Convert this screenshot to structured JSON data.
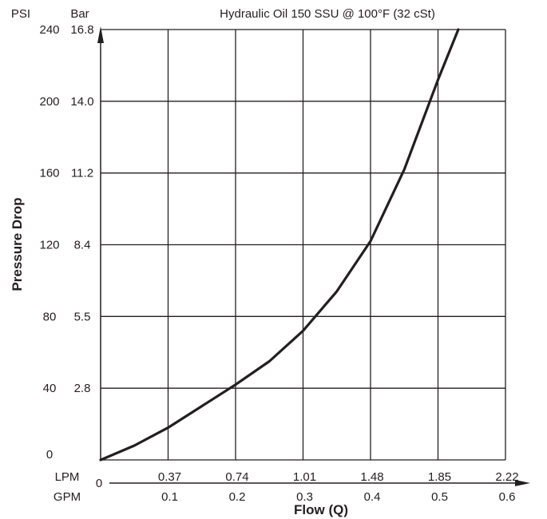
{
  "chart_data": {
    "type": "line",
    "title": "Hydraulic Oil 150 SSU @ 100°F (32 cSt)",
    "xlabel": "Flow (Q)",
    "ylabel": "Pressure Drop",
    "x_unit_primary": "LPM",
    "x_unit_secondary": "GPM",
    "y_unit_primary": "PSI",
    "y_unit_secondary": "Bar",
    "x_ticks_lpm": [
      "0.37",
      "0.74",
      "1.01",
      "1.48",
      "1.85",
      "2.22"
    ],
    "x_ticks_gpm": [
      "0",
      "0.1",
      "0.2",
      "0.3",
      "0.4",
      "0.5",
      "0.6"
    ],
    "y_ticks_psi": [
      "0",
      "40",
      "80",
      "120",
      "160",
      "200",
      "240"
    ],
    "y_ticks_bar": [
      "2.8",
      "5.5",
      "8.4",
      "11.2",
      "14.0",
      "16.8"
    ],
    "xlim": [
      0,
      0.6
    ],
    "ylim": [
      0,
      240
    ],
    "grid": true,
    "series": [
      {
        "x": [
          0,
          0.05,
          0.1,
          0.15,
          0.2,
          0.25,
          0.3,
          0.35,
          0.4,
          0.45,
          0.5,
          0.53
        ],
        "values": [
          0,
          8,
          18,
          30,
          42,
          55,
          72,
          94,
          122,
          162,
          212,
          240
        ]
      }
    ]
  }
}
